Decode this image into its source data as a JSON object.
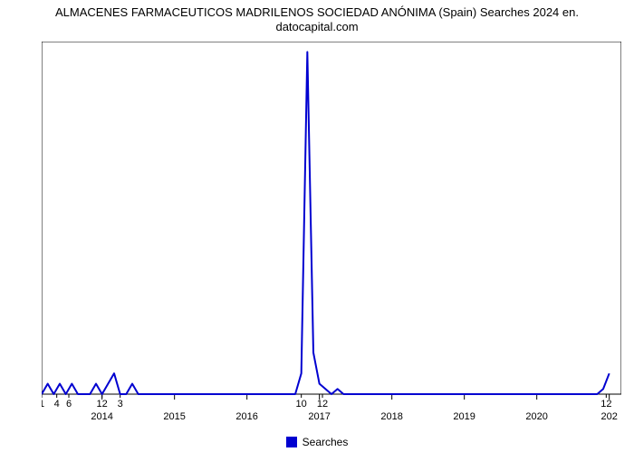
{
  "chart": {
    "type": "line",
    "title_line1": "ALMACENES FARMACEUTICOS MADRILENOS SOCIEDAD ANÓNIMA (Spain) Searches 2024 en.",
    "title_line2": "datocapital.com",
    "title_fontsize": 13,
    "title_color": "#000000",
    "background_color": "#ffffff",
    "plot_border_color": "#000000",
    "series": {
      "name": "Searches",
      "color": "#0000d0",
      "line_width": 2,
      "fill_opacity": 0
    },
    "x_domain_units": 96,
    "x_major_labels": [
      "2014",
      "2015",
      "2016",
      "2017",
      "2018",
      "2019",
      "2020",
      "202"
    ],
    "x_major_positions_u": [
      10,
      22,
      34,
      46,
      58,
      70,
      82,
      94
    ],
    "x_minor_labels": [
      "1",
      "4",
      "6",
      "12",
      "3",
      "10",
      "12",
      "12"
    ],
    "x_minor_positions_u": [
      0,
      2.5,
      4.5,
      10,
      13,
      43,
      46.5,
      93.5
    ],
    "y": {
      "min": 0,
      "max": 34,
      "tick_step": 2,
      "tick_color": "#000000",
      "tick_fontsize": 11
    },
    "data_points": [
      [
        0,
        0
      ],
      [
        1,
        1
      ],
      [
        2,
        0
      ],
      [
        3,
        1
      ],
      [
        4,
        0
      ],
      [
        5,
        1
      ],
      [
        6,
        0
      ],
      [
        8,
        0
      ],
      [
        9,
        1
      ],
      [
        10,
        0
      ],
      [
        11,
        1
      ],
      [
        12,
        2
      ],
      [
        13,
        0
      ],
      [
        14,
        0
      ],
      [
        15,
        1
      ],
      [
        16,
        0
      ],
      [
        22,
        0
      ],
      [
        34,
        0
      ],
      [
        42,
        0
      ],
      [
        43,
        2
      ],
      [
        44,
        33
      ],
      [
        45,
        4
      ],
      [
        46,
        1
      ],
      [
        47,
        0.5
      ],
      [
        48,
        0
      ],
      [
        49,
        0.5
      ],
      [
        50,
        0
      ],
      [
        58,
        0
      ],
      [
        70,
        0
      ],
      [
        82,
        0
      ],
      [
        90,
        0
      ],
      [
        92,
        0
      ],
      [
        93,
        0.5
      ],
      [
        94,
        2
      ]
    ],
    "legend": {
      "label": "Searches",
      "swatch_color": "#0000d0",
      "fontsize": 12
    }
  }
}
